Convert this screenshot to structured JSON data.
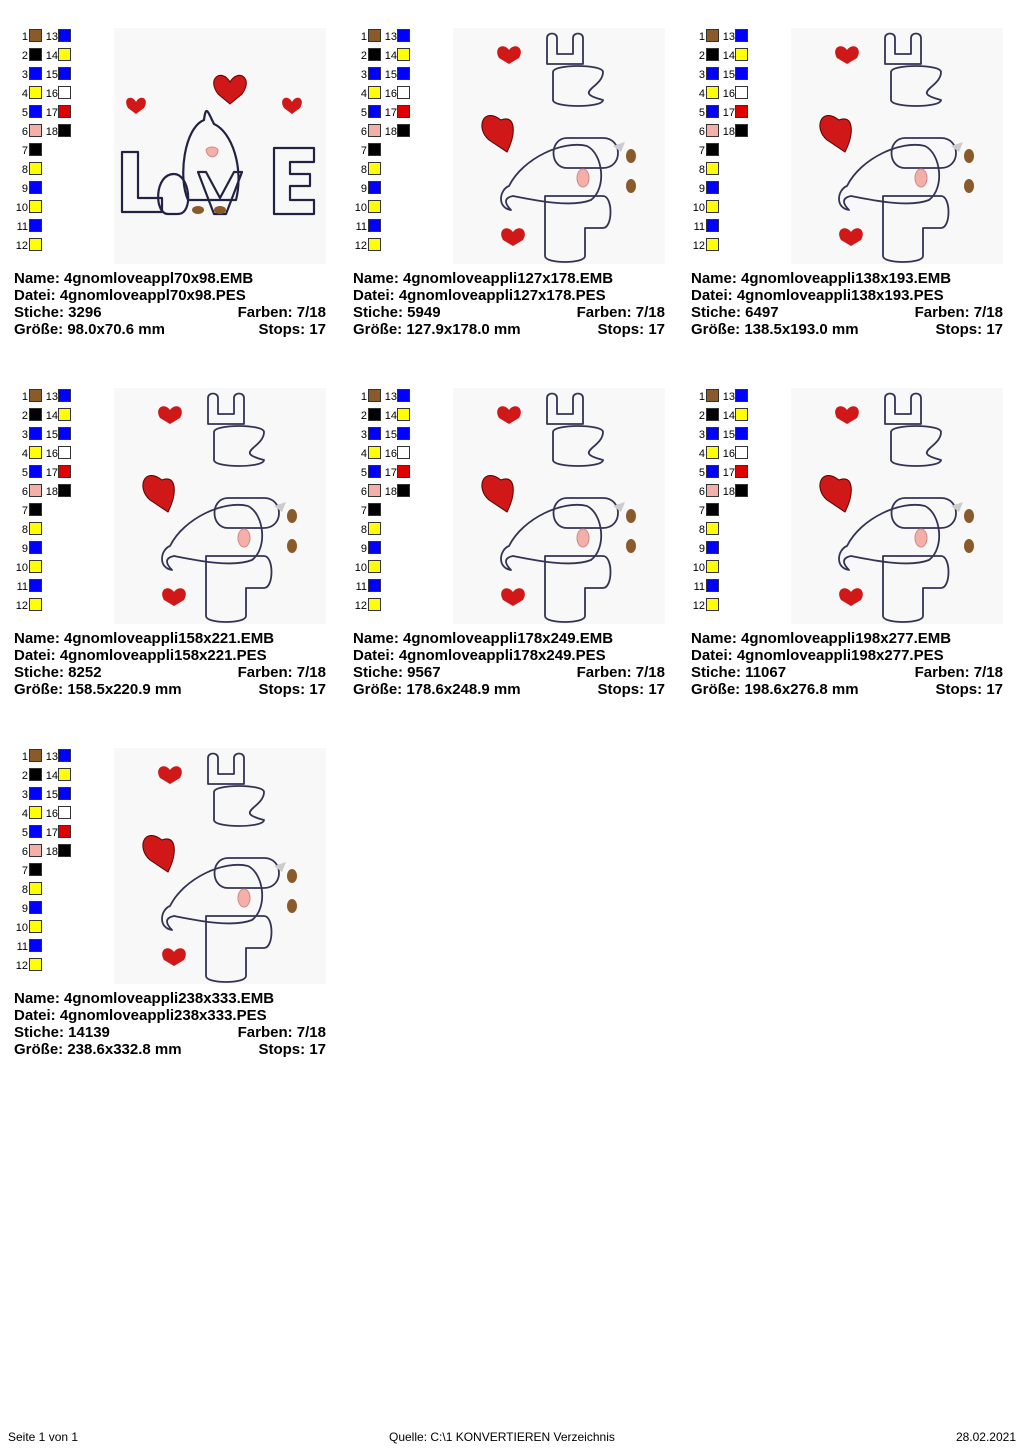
{
  "labels": {
    "name": "Name:",
    "datei": "Datei:",
    "stiche": "Stiche:",
    "farben": "Farben:",
    "groesse": "Größe:",
    "stops": "Stops:"
  },
  "colors": {
    "brown": "#8B5A2B",
    "black": "#000000",
    "blue": "#0000FF",
    "yellow": "#FFFF00",
    "white": "#FFFFFF",
    "red": "#E00000",
    "pink": "#F4B0A8"
  },
  "palette_left": [
    {
      "n": "1",
      "c": "brown"
    },
    {
      "n": "2",
      "c": "black"
    },
    {
      "n": "3",
      "c": "blue"
    },
    {
      "n": "4",
      "c": "yellow"
    },
    {
      "n": "5",
      "c": "blue"
    },
    {
      "n": "6",
      "c": "pink"
    },
    {
      "n": "7",
      "c": "black"
    },
    {
      "n": "8",
      "c": "yellow"
    },
    {
      "n": "9",
      "c": "blue"
    },
    {
      "n": "10",
      "c": "yellow"
    },
    {
      "n": "11",
      "c": "blue"
    },
    {
      "n": "12",
      "c": "yellow"
    }
  ],
  "palette_right": [
    {
      "n": "13",
      "c": "blue"
    },
    {
      "n": "14",
      "c": "yellow"
    },
    {
      "n": "15",
      "c": "blue"
    },
    {
      "n": "16",
      "c": "white"
    },
    {
      "n": "17",
      "c": "red"
    },
    {
      "n": "18",
      "c": "black"
    }
  ],
  "designs": [
    {
      "name": "4gnomloveappl70x98.EMB",
      "datei": "4gnomloveappl70x98.PES",
      "stiche": "3296",
      "farben": "7/18",
      "groesse": "98.0x70.6 mm",
      "stops": "17",
      "orientation": "horizontal"
    },
    {
      "name": "4gnomloveappli127x178.EMB",
      "datei": "4gnomloveappli127x178.PES",
      "stiche": "5949",
      "farben": "7/18",
      "groesse": "127.9x178.0 mm",
      "stops": "17",
      "orientation": "vertical"
    },
    {
      "name": "4gnomloveappli138x193.EMB",
      "datei": "4gnomloveappli138x193.PES",
      "stiche": "6497",
      "farben": "7/18",
      "groesse": "138.5x193.0 mm",
      "stops": "17",
      "orientation": "vertical"
    },
    {
      "name": "4gnomloveappli158x221.EMB",
      "datei": "4gnomloveappli158x221.PES",
      "stiche": "8252",
      "farben": "7/18",
      "groesse": "158.5x220.9 mm",
      "stops": "17",
      "orientation": "vertical"
    },
    {
      "name": "4gnomloveappli178x249.EMB",
      "datei": "4gnomloveappli178x249.PES",
      "stiche": "9567",
      "farben": "7/18",
      "groesse": "178.6x248.9 mm",
      "stops": "17",
      "orientation": "vertical"
    },
    {
      "name": "4gnomloveappli198x277.EMB",
      "datei": "4gnomloveappli198x277.PES",
      "stiche": "11067",
      "farben": "7/18",
      "groesse": "198.6x276.8 mm",
      "stops": "17",
      "orientation": "vertical"
    },
    {
      "name": "4gnomloveappli238x333.EMB",
      "datei": "4gnomloveappli238x333.PES",
      "stiche": "14139",
      "farben": "7/18",
      "groesse": "238.6x332.8 mm",
      "stops": "17",
      "orientation": "vertical"
    }
  ],
  "footer": {
    "page": "Seite 1 von 1",
    "source": "Quelle: C:\\1 KONVERTIEREN Verzeichnis",
    "date": "28.02.2021"
  }
}
